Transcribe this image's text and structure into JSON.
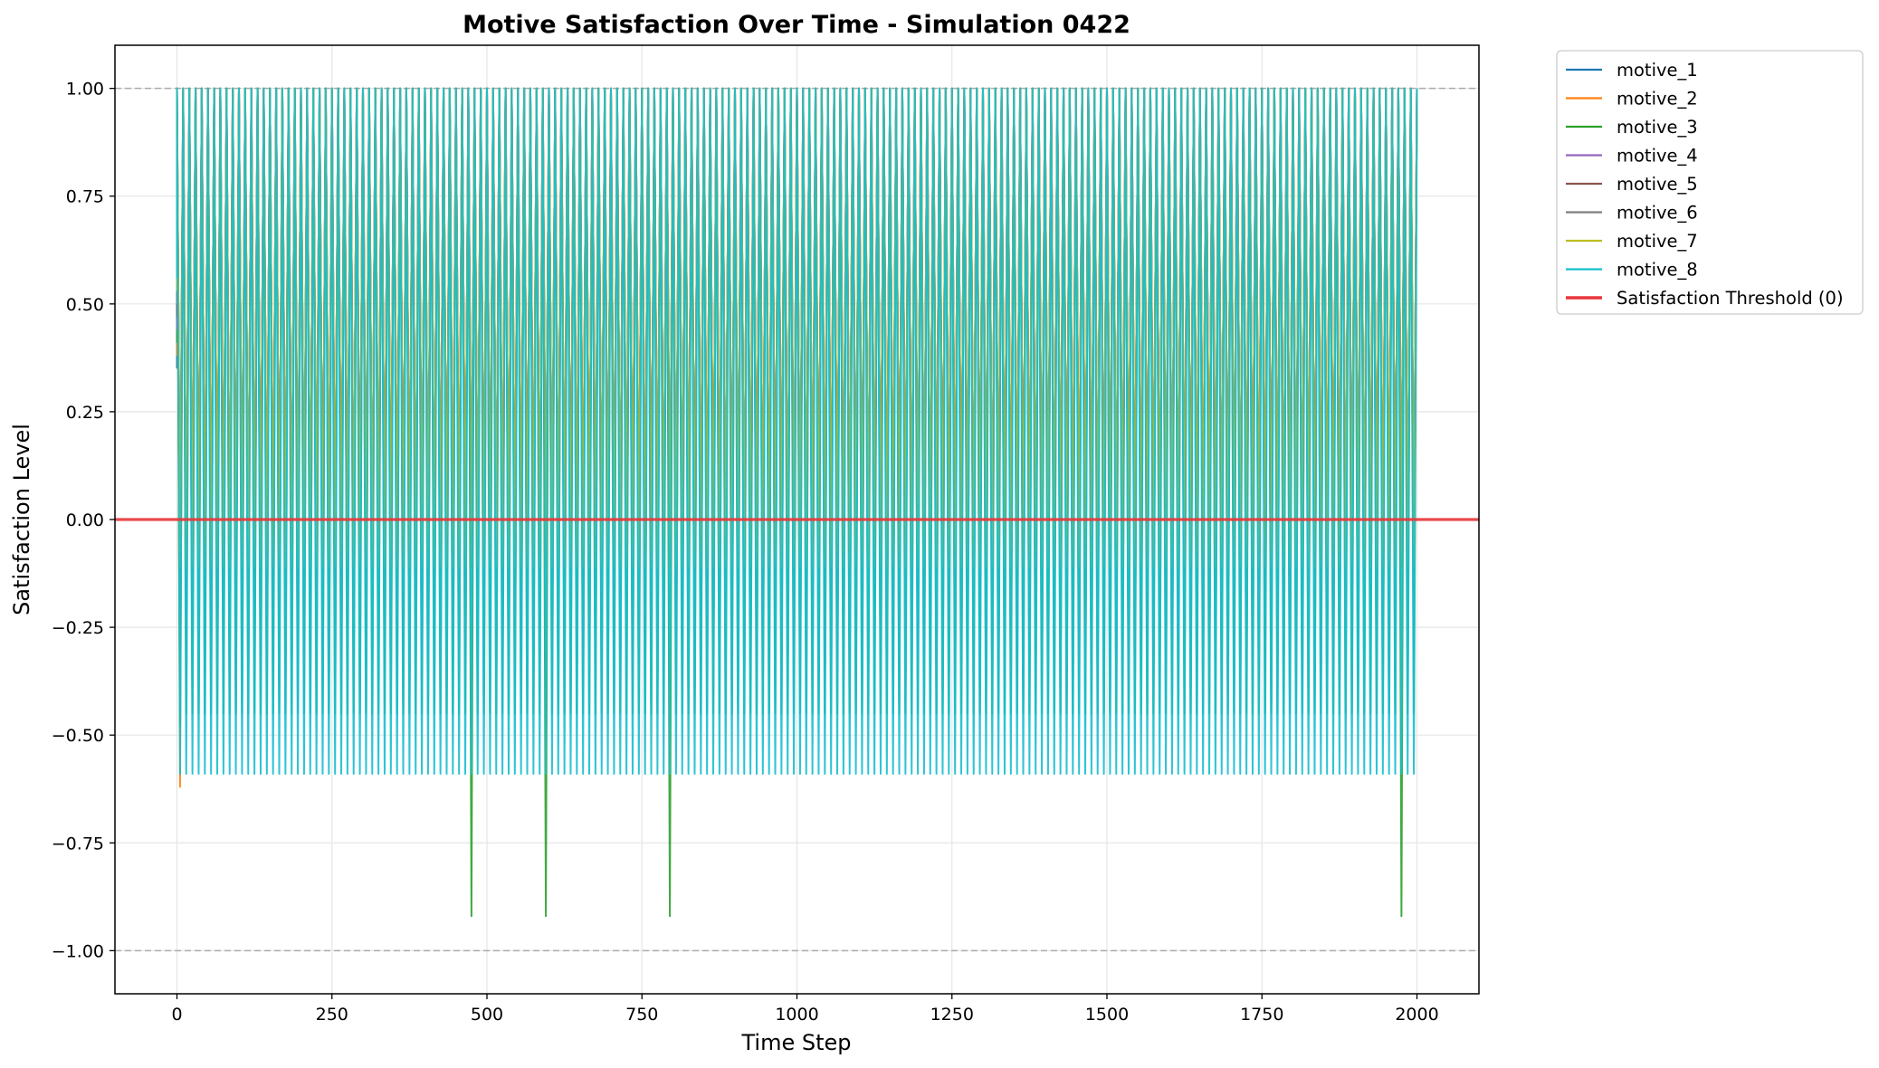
{
  "chart_data": {
    "type": "line",
    "title": "Motive Satisfaction Over Time - Simulation 0422",
    "xlabel": "Time Step",
    "ylabel": "Satisfaction Level",
    "xlim": [
      -100,
      2100
    ],
    "ylim": [
      -1.1,
      1.1
    ],
    "xticks": [
      0,
      250,
      500,
      750,
      1000,
      1250,
      1500,
      1750,
      2000
    ],
    "xtick_labels": [
      "0",
      "250",
      "500",
      "750",
      "1000",
      "1250",
      "1500",
      "1750",
      "2000"
    ],
    "yticks": [
      -1.0,
      -0.75,
      -0.5,
      -0.25,
      0.0,
      0.25,
      0.5,
      0.75,
      1.0
    ],
    "ytick_labels": [
      "−1.00",
      "−0.75",
      "−0.50",
      "−0.25",
      "0.00",
      "0.25",
      "0.50",
      "0.75",
      "1.00"
    ],
    "grid": true,
    "legend_position": "outside-top-right",
    "reference_lines": [
      {
        "y": 1.0,
        "style": "dashed",
        "color": "#aaaaaa"
      },
      {
        "y": -1.0,
        "style": "dashed",
        "color": "#aaaaaa"
      }
    ],
    "threshold": {
      "name": "Satisfaction Threshold (0)",
      "y": 0.0,
      "color": "#e8363a"
    },
    "time_range": [
      0,
      2000
    ],
    "series": [
      {
        "name": "motive_1",
        "color": "#1f77b4",
        "min": -0.11,
        "max": 1.0,
        "period": 10,
        "dip_min": null,
        "dip_steps": []
      },
      {
        "name": "motive_2",
        "color": "#ff7f0e",
        "min": -0.11,
        "max": 1.0,
        "period": 10,
        "initial_min": -0.62,
        "dip_min": null,
        "dip_steps": []
      },
      {
        "name": "motive_3",
        "color": "#2ca02c",
        "min": -0.45,
        "max": 1.0,
        "period": 10,
        "initial_min": -0.48,
        "dip_min": -0.92,
        "dip_steps": [
          473,
          588,
          788,
          1970
        ]
      },
      {
        "name": "motive_4",
        "color": "#9467bd",
        "min": -0.11,
        "max": 1.0,
        "period": 10,
        "dip_min": null,
        "dip_steps": []
      },
      {
        "name": "motive_5",
        "color": "#8c564b",
        "min": -0.11,
        "max": 1.0,
        "period": 10,
        "dip_min": null,
        "dip_steps": []
      },
      {
        "name": "motive_6",
        "color": "#7f7f7f",
        "min": -0.11,
        "max": 1.0,
        "period": 10,
        "dip_min": null,
        "dip_steps": []
      },
      {
        "name": "motive_7",
        "color": "#bcbd22",
        "min": -0.11,
        "max": 1.0,
        "period": 10,
        "dip_min": null,
        "dip_steps": []
      },
      {
        "name": "motive_8",
        "color": "#17becf",
        "min": -0.59,
        "max": 1.0,
        "period": 10,
        "dip_min": null,
        "dip_steps": []
      }
    ]
  }
}
